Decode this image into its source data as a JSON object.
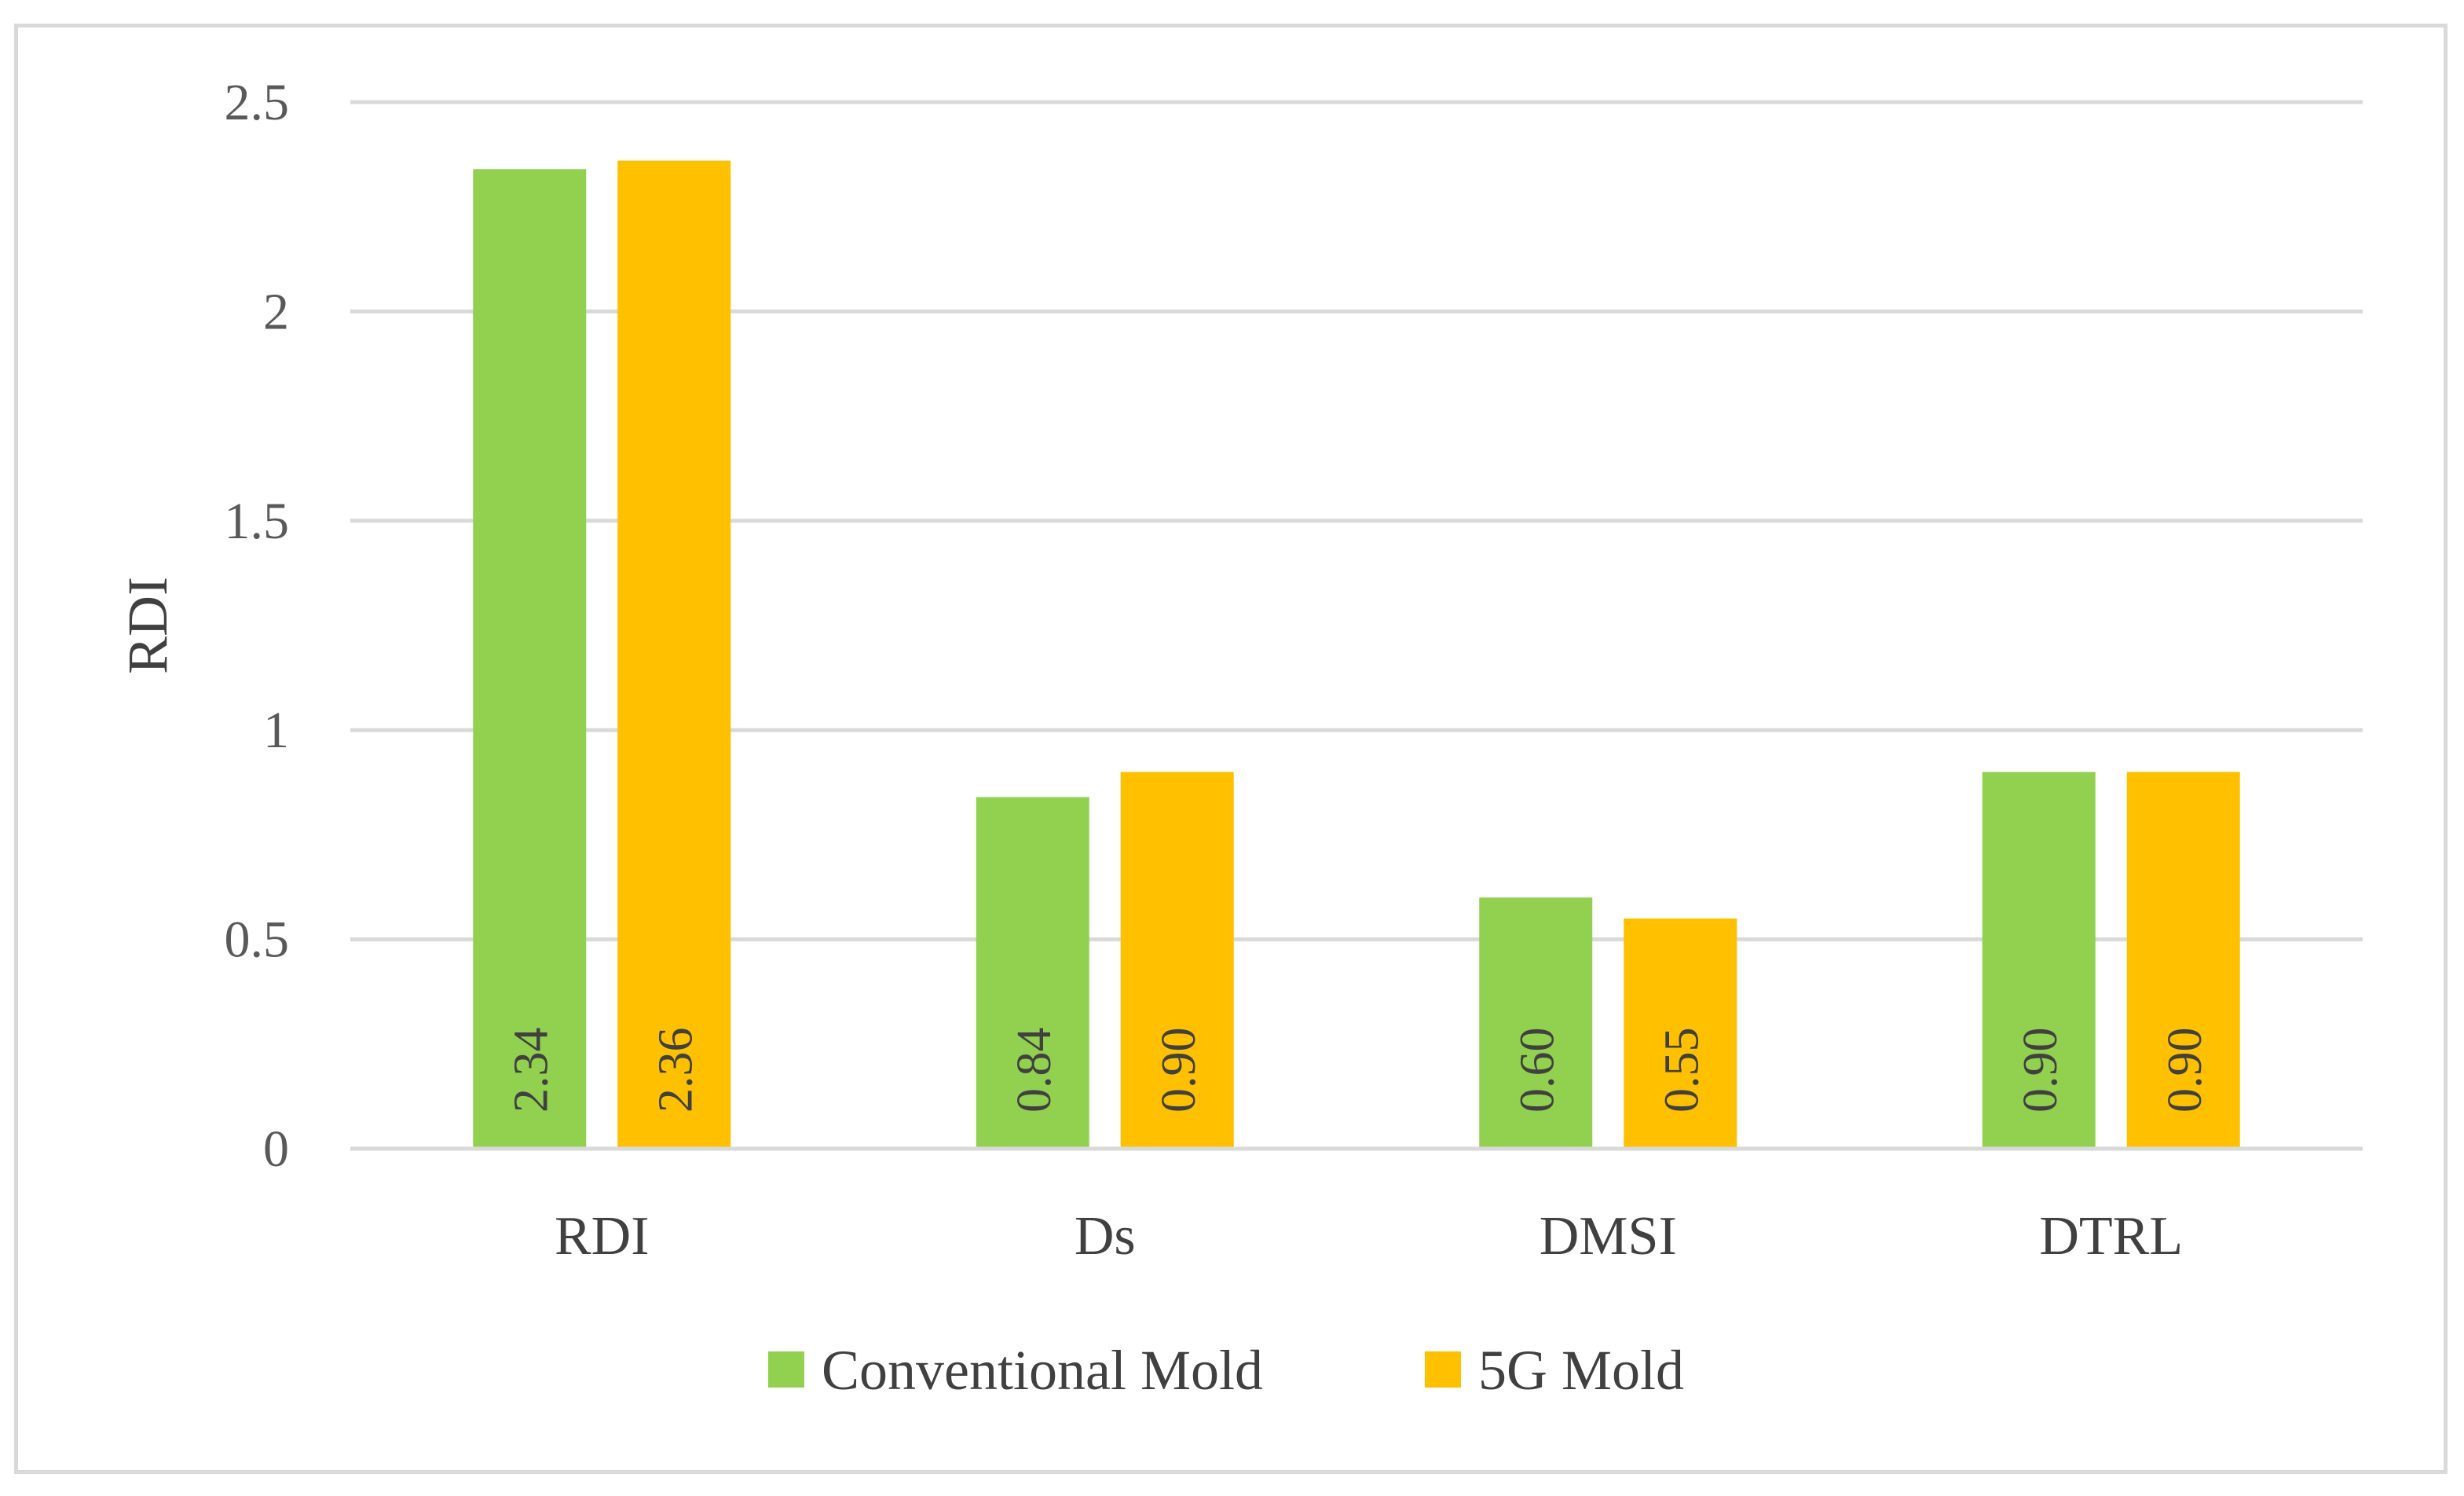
{
  "chart_data": {
    "type": "bar",
    "title": "",
    "xlabel": "",
    "ylabel": "RDI",
    "ylim": [
      0,
      2.5
    ],
    "yticks": [
      0,
      0.5,
      1,
      1.5,
      2,
      2.5
    ],
    "ytick_labels": [
      "0",
      "0.5",
      "1",
      "1.5",
      "2",
      "2.5"
    ],
    "grid": true,
    "categories": [
      "RDI",
      "Ds",
      "DMSI",
      "DTRL"
    ],
    "series": [
      {
        "name": "Conventional Mold",
        "color": "#92d050",
        "values": [
          2.34,
          0.84,
          0.6,
          0.9
        ],
        "labels": [
          "2.34",
          "0.84",
          "0.60",
          "0.90"
        ]
      },
      {
        "name": "5G Mold",
        "color": "#ffc000",
        "values": [
          2.36,
          0.9,
          0.55,
          0.9
        ],
        "labels": [
          "2.36",
          "0.90",
          "0.55",
          "0.90"
        ]
      }
    ],
    "legend_position": "bottom"
  }
}
